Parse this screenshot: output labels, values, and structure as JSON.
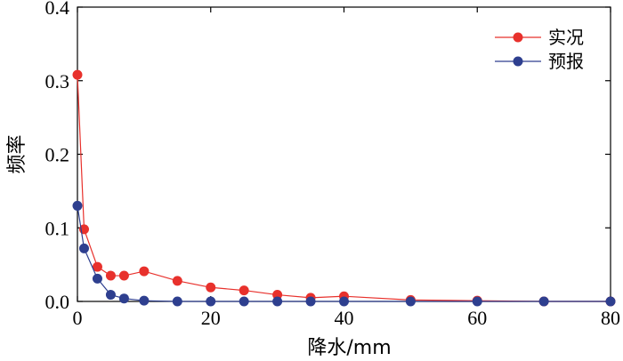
{
  "chart_data": {
    "type": "line",
    "xlabel": "降水/mm",
    "ylabel": "频率",
    "xlim": [
      0,
      80
    ],
    "ylim": [
      0,
      0.4
    ],
    "xticks": [
      0,
      20,
      40,
      60,
      80
    ],
    "xtick_labels": [
      "0",
      "20",
      "40",
      "60",
      "80"
    ],
    "yticks": [
      0.0,
      0.1,
      0.2,
      0.3,
      0.4
    ],
    "ytick_labels": [
      "0.0",
      "0.1",
      "0.2",
      "0.3",
      "0.4"
    ],
    "grid": false,
    "legend_position": "top-right",
    "series": [
      {
        "name": "实况",
        "color": "#e8312c",
        "marker": "circle",
        "x": [
          0,
          1,
          3,
          5,
          7,
          10,
          15,
          20,
          25,
          30,
          35,
          40,
          50,
          60,
          70,
          80
        ],
        "y": [
          0.308,
          0.098,
          0.047,
          0.035,
          0.035,
          0.041,
          0.028,
          0.019,
          0.015,
          0.009,
          0.005,
          0.007,
          0.002,
          0.001,
          0.0,
          0.0
        ]
      },
      {
        "name": "预报",
        "color": "#2e3f8f",
        "marker": "circle",
        "x": [
          0,
          1,
          3,
          5,
          7,
          10,
          15,
          20,
          25,
          30,
          35,
          40,
          50,
          60,
          70,
          80
        ],
        "y": [
          0.13,
          0.072,
          0.031,
          0.009,
          0.004,
          0.001,
          0.0,
          0.0,
          0.0,
          0.0,
          0.0,
          0.0,
          0.0,
          0.0,
          0.0,
          0.0
        ]
      }
    ]
  }
}
